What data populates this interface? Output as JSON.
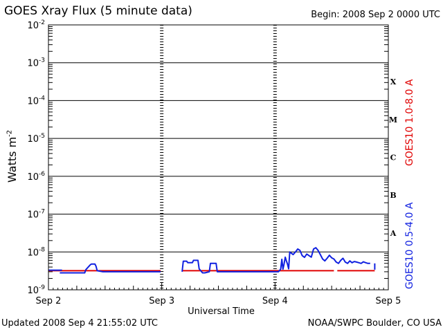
{
  "header": {
    "title": "GOES Xray Flux (5 minute data)",
    "begin": "Begin:  2008 Sep 2 0000 UTC"
  },
  "footer": {
    "updated": "Updated 2008 Sep  4 21:55:02 UTC",
    "credit": "NOAA/SWPC Boulder, CO USA"
  },
  "labels": {
    "ylabel": "Watts m",
    "ylabel_exp": "-2",
    "right_red": "GOES10 1.0-8.0 A",
    "right_blue": "GOES10 0.5-4.0 A"
  },
  "colors": {
    "long": "#e00000",
    "short": "#1020e0",
    "grid": "#000000"
  },
  "chart_data": {
    "type": "line",
    "title": "GOES Xray Flux (5 minute data)",
    "xlabel": "Universal Time",
    "ylabel": "Watts m-2",
    "yscale": "log",
    "ylim": [
      1e-09,
      0.01
    ],
    "xlim": [
      0,
      3
    ],
    "x_unit": "days since 2008 Sep 2 0000 UTC",
    "x_ticks": [
      {
        "value": 0,
        "label": "Sep 2"
      },
      {
        "value": 1,
        "label": "Sep 3"
      },
      {
        "value": 2,
        "label": "Sep 4"
      },
      {
        "value": 3,
        "label": "Sep 5"
      }
    ],
    "y_ticks": [
      {
        "value": 1e-09,
        "label": "10",
        "exp": "-9"
      },
      {
        "value": 1e-08,
        "label": "10",
        "exp": "-8"
      },
      {
        "value": 1e-07,
        "label": "10",
        "exp": "-7"
      },
      {
        "value": 1e-06,
        "label": "10",
        "exp": "-6"
      },
      {
        "value": 1e-05,
        "label": "10",
        "exp": "-5"
      },
      {
        "value": 0.0001,
        "label": "10",
        "exp": "-4"
      },
      {
        "value": 0.001,
        "label": "10",
        "exp": "-3"
      },
      {
        "value": 0.01,
        "label": "10",
        "exp": "-2"
      }
    ],
    "flare_classes": [
      {
        "label": "A",
        "lo": 1e-08,
        "hi": 1e-07
      },
      {
        "label": "B",
        "lo": 1e-07,
        "hi": 1e-06
      },
      {
        "label": "C",
        "lo": 1e-06,
        "hi": 1e-05
      },
      {
        "label": "M",
        "lo": 1e-05,
        "hi": 0.0001
      },
      {
        "label": "X",
        "lo": 0.0001,
        "hi": 0.001
      }
    ],
    "grid": true,
    "series": [
      {
        "name": "GOES10 1.0-8.0 A",
        "color": "#e00000",
        "segments": [
          [
            [
              -0.1,
              3.2e-09
            ],
            [
              0.99,
              3.2e-09
            ]
          ],
          [
            [
              1.18,
              3.2e-09
            ],
            [
              2.52,
              3.2e-09
            ]
          ],
          [
            [
              2.55,
              3.2e-09
            ],
            [
              2.88,
              3.2e-09
            ]
          ]
        ]
      },
      {
        "name": "GOES10 0.5-4.0 A",
        "color": "#1020e0",
        "segments": [
          [
            [
              -0.1,
              3.3e-09
            ],
            [
              0.12,
              3.3e-09
            ]
          ],
          [
            [
              0.1,
              2.8e-09
            ],
            [
              0.32,
              2.8e-09
            ],
            [
              0.33,
              3.4e-09
            ],
            [
              0.37,
              4.6e-09
            ],
            [
              0.38,
              4.8e-09
            ],
            [
              0.41,
              4.8e-09
            ],
            [
              0.42,
              4.2e-09
            ],
            [
              0.43,
              3.2e-09
            ],
            [
              0.48,
              3e-09
            ],
            [
              0.99,
              3e-09
            ]
          ],
          [
            [
              1.18,
              3e-09
            ],
            [
              1.19,
              5.7e-09
            ],
            [
              1.22,
              5.7e-09
            ],
            [
              1.23,
              5.2e-09
            ],
            [
              1.27,
              5.2e-09
            ],
            [
              1.28,
              6e-09
            ],
            [
              1.32,
              6e-09
            ],
            [
              1.33,
              3.6e-09
            ],
            [
              1.36,
              2.8e-09
            ],
            [
              1.38,
              2.8e-09
            ],
            [
              1.42,
              3e-09
            ],
            [
              1.43,
              5e-09
            ],
            [
              1.48,
              5e-09
            ],
            [
              1.49,
              3e-09
            ],
            [
              1.9,
              3e-09
            ],
            [
              2.03,
              3e-09
            ],
            [
              2.05,
              3.5e-09
            ],
            [
              2.06,
              6.4e-09
            ],
            [
              2.07,
              3.5e-09
            ],
            [
              2.08,
              4.8e-09
            ],
            [
              2.09,
              7.3e-09
            ],
            [
              2.1,
              5.8e-09
            ],
            [
              2.11,
              4.8e-09
            ],
            [
              2.12,
              3.6e-09
            ],
            [
              2.13,
              1e-08
            ],
            [
              2.16,
              8.5e-09
            ],
            [
              2.18,
              1e-08
            ],
            [
              2.2,
              1.2e-08
            ],
            [
              2.22,
              1.1e-08
            ],
            [
              2.24,
              8e-09
            ],
            [
              2.26,
              7.2e-09
            ],
            [
              2.28,
              8.8e-09
            ],
            [
              2.3,
              8e-09
            ],
            [
              2.32,
              7.3e-09
            ],
            [
              2.34,
              1.2e-08
            ],
            [
              2.36,
              1.3e-08
            ],
            [
              2.38,
              1.1e-08
            ],
            [
              2.4,
              8.5e-09
            ],
            [
              2.42,
              6.5e-09
            ],
            [
              2.44,
              5.8e-09
            ],
            [
              2.46,
              6.8e-09
            ],
            [
              2.48,
              8.2e-09
            ],
            [
              2.5,
              7e-09
            ],
            [
              2.52,
              6.5e-09
            ],
            [
              2.54,
              5.4e-09
            ],
            [
              2.56,
              5e-09
            ],
            [
              2.58,
              6e-09
            ],
            [
              2.6,
              6.8e-09
            ],
            [
              2.62,
              5.4e-09
            ],
            [
              2.64,
              5e-09
            ],
            [
              2.66,
              5.8e-09
            ],
            [
              2.68,
              5.2e-09
            ],
            [
              2.7,
              5.6e-09
            ],
            [
              2.72,
              5.4e-09
            ],
            [
              2.74,
              5.2e-09
            ],
            [
              2.76,
              5e-09
            ],
            [
              2.78,
              5.5e-09
            ],
            [
              2.8,
              5.2e-09
            ],
            [
              2.82,
              5e-09
            ],
            [
              2.84,
              5e-09
            ]
          ],
          [
            [
              2.88,
              3.4e-09
            ],
            [
              2.88,
              5e-09
            ]
          ]
        ]
      }
    ]
  }
}
